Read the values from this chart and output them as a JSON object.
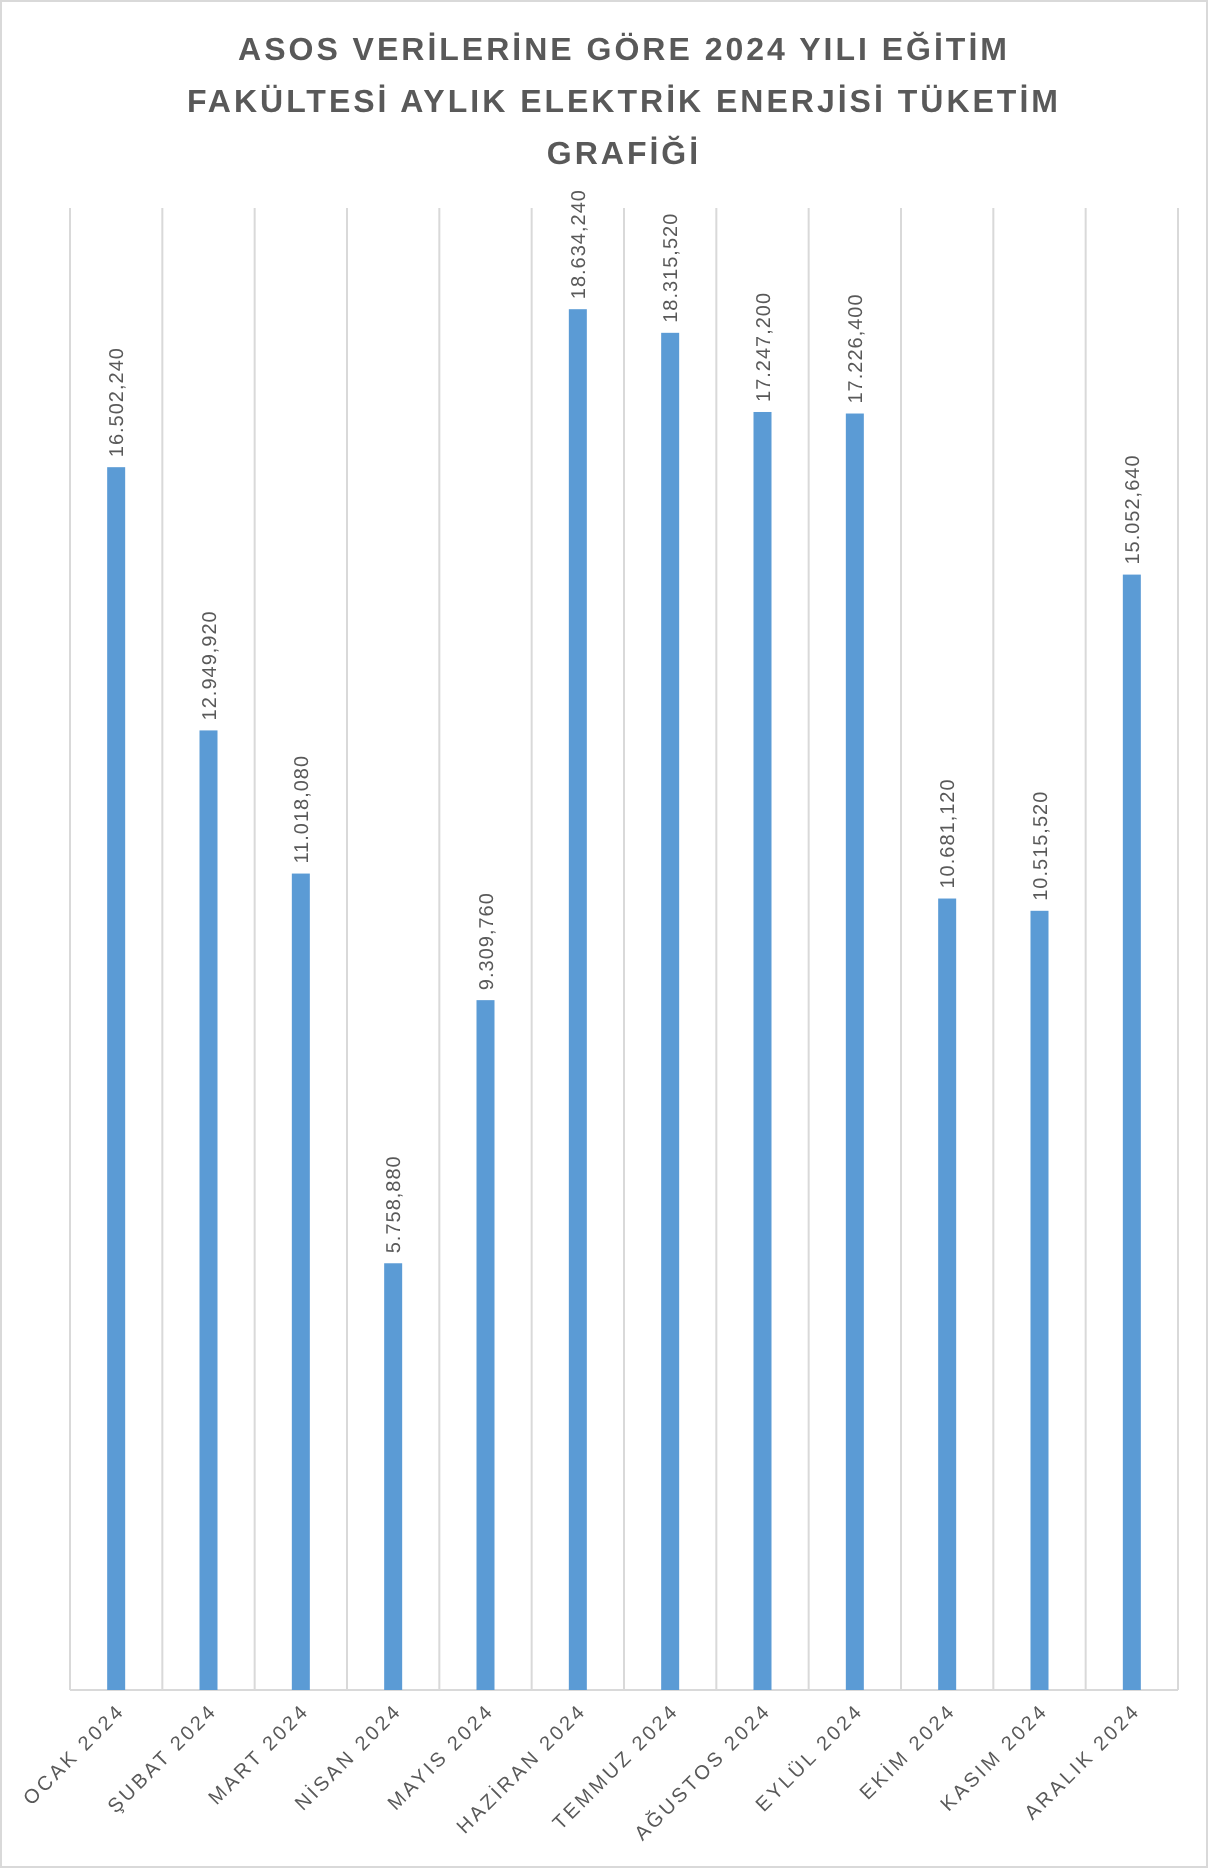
{
  "chart_data": {
    "type": "bar",
    "title": "ASOS VERİLERİNE GÖRE 2024 YILI EĞİTİM FAKÜLTESİ AYLIK ELEKTRİK ENERJİSİ TÜKETİM GRAFİĞİ",
    "categories": [
      "OCAK 2024",
      "ŞUBAT 2024",
      "MART 2024",
      "NİSAN 2024",
      "MAYIS 2024",
      "HAZİRAN 2024",
      "TEMMUZ 2024",
      "AĞUSTOS 2024",
      "EYLÜL 2024",
      "EKİM 2024",
      "KASIM 2024",
      "ARALIK 2024"
    ],
    "values": [
      16502.24,
      12949.92,
      11018.08,
      5758.88,
      9309.76,
      18634.24,
      18315.52,
      17247.2,
      17226.4,
      10681.12,
      10515.52,
      15052.64
    ],
    "value_labels": [
      "16.502,240",
      "12.949,920",
      "11.018,080",
      "5.758,880",
      "9.309,760",
      "18.634,240",
      "18.315,520",
      "17.247,200",
      "17.226,400",
      "10.681,120",
      "10.515,520",
      "15.052,640"
    ],
    "color": "#5b9bd5",
    "ylim": [
      0,
      20000
    ],
    "grid": "x"
  }
}
